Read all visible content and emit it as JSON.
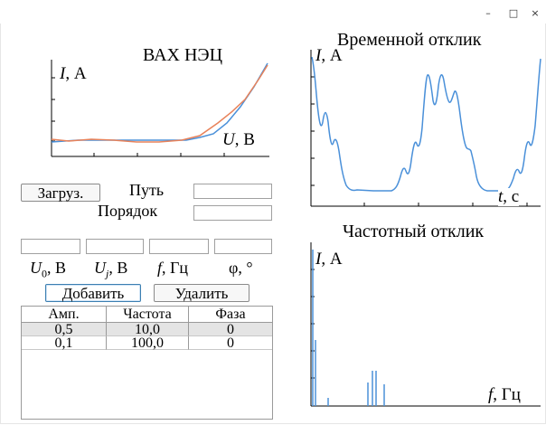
{
  "window": {
    "minimize": "–",
    "maximize": "□",
    "close": "×"
  },
  "iv_chart": {
    "title": "ВАХ НЭЦ",
    "ylabel_var": "I",
    "ylabel_unit": ", А",
    "xlabel_var": "U",
    "xlabel_unit": ", В"
  },
  "time_chart": {
    "title": "Временной отклик",
    "ylabel_var": "I",
    "ylabel_unit": ", А",
    "xlabel_var": "t",
    "xlabel_unit": ", с"
  },
  "freq_chart": {
    "title": "Частотный отклик",
    "ylabel_var": "I",
    "ylabel_unit": ", А",
    "xlabel_var": "f",
    "xlabel_unit": ", Гц"
  },
  "file_section": {
    "load_button": "Загруз.",
    "path_label": "Путь",
    "path_value": "",
    "order_label": "Порядок",
    "order_value": ""
  },
  "harmonic_inputs": {
    "u0_value": "",
    "uj_value": "",
    "f_value": "",
    "phi_value": "",
    "u0_var": "U",
    "u0_sub": "0",
    "u0_unit": ", В",
    "uj_var": "U",
    "uj_sub": "j",
    "uj_unit": ", В",
    "f_var": "f",
    "f_unit": ", Гц",
    "phi_label": "φ, °",
    "add_button": "Добавить",
    "delete_button": "Удалить"
  },
  "table": {
    "columns": [
      "Амп.",
      "Частота",
      "Фаза"
    ],
    "rows": [
      [
        "0,5",
        "10,0",
        "0"
      ],
      [
        "0,1",
        "100,0",
        "0"
      ]
    ],
    "selected_row": 0
  }
}
